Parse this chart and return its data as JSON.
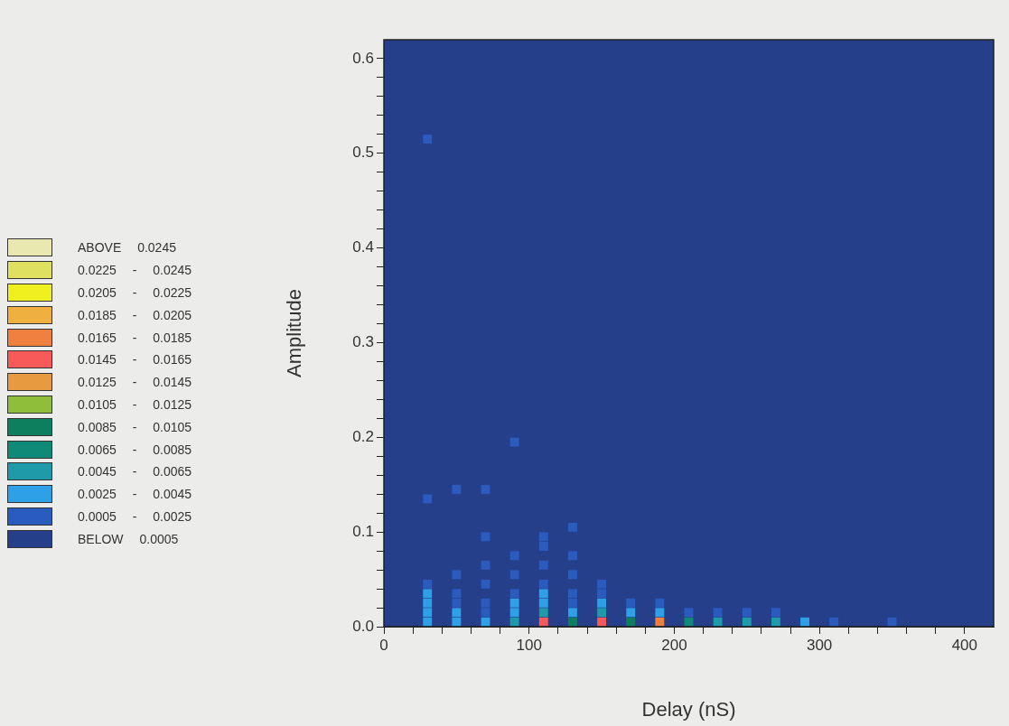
{
  "chart_data": {
    "type": "scatter",
    "xlabel": "Delay (nS)",
    "ylabel": "Amplitude",
    "marker": "square",
    "legend": "left",
    "xlim": [
      0,
      420
    ],
    "xticks": [
      0,
      {
        "value": 20,
        "label": null
      },
      {
        "value": 40,
        "label": null
      },
      {
        "value": 60,
        "label": null
      },
      {
        "value": 80,
        "label": null
      },
      100,
      {
        "value": 120,
        "label": null
      },
      {
        "value": 140,
        "label": null
      },
      {
        "value": 160,
        "label": null
      },
      {
        "value": 180,
        "label": null
      },
      200,
      {
        "value": 220,
        "label": null
      },
      {
        "value": 240,
        "label": null
      },
      {
        "value": 260,
        "label": null
      },
      {
        "value": 280,
        "label": null
      },
      300,
      {
        "value": 320,
        "label": null
      },
      {
        "value": 340,
        "label": null
      },
      {
        "value": 360,
        "label": null
      },
      {
        "value": 380,
        "label": null
      },
      400
    ],
    "ylim": [
      0,
      0.62
    ],
    "yticks": [
      {
        "value": 0,
        "label": "0.0"
      },
      {
        "value": 0.02,
        "label": null
      },
      {
        "value": 0.04,
        "label": null
      },
      {
        "value": 0.06,
        "label": null
      },
      {
        "value": 0.08,
        "label": null
      },
      0.1,
      {
        "value": 0.12,
        "label": null
      },
      {
        "value": 0.14,
        "label": null
      },
      {
        "value": 0.16,
        "label": null
      },
      {
        "value": 0.18,
        "label": null
      },
      0.2,
      {
        "value": 0.22,
        "label": null
      },
      {
        "value": 0.24,
        "label": null
      },
      {
        "value": 0.26,
        "label": null
      },
      {
        "value": 0.28,
        "label": null
      },
      0.3,
      {
        "value": 0.32,
        "label": null
      },
      {
        "value": 0.34,
        "label": null
      },
      {
        "value": 0.36,
        "label": null
      },
      {
        "value": 0.38,
        "label": null
      },
      0.4,
      {
        "value": 0.42,
        "label": null
      },
      {
        "value": 0.44,
        "label": null
      },
      {
        "value": 0.46,
        "label": null
      },
      {
        "value": 0.48,
        "label": null
      },
      0.5,
      {
        "value": 0.52,
        "label": null
      },
      {
        "value": 0.54,
        "label": null
      },
      {
        "value": 0.56,
        "label": null
      },
      {
        "value": 0.58,
        "label": null
      },
      0.6
    ],
    "series": [
      {
        "name": "ABOVE 0.0245",
        "color": "#e8e8b0"
      },
      {
        "name": "0.0225 - 0.0245",
        "color": "#e0e060"
      },
      {
        "name": "0.0205 - 0.0225",
        "color": "#f0f020"
      },
      {
        "name": "0.0185 - 0.0205",
        "color": "#f0b040"
      },
      {
        "name": "0.0165 - 0.0185",
        "color": "#f08040",
        "x": [
          190
        ],
        "values": [
          0.005
        ]
      },
      {
        "name": "0.0145 - 0.0165",
        "color": "#f85a5a",
        "x": [
          110,
          150
        ],
        "values": [
          0.005,
          0.005
        ]
      },
      {
        "name": "0.0125 - 0.0145",
        "color": "#e89a40"
      },
      {
        "name": "0.0105 - 0.0125",
        "color": "#8fbf3a"
      },
      {
        "name": "0.0085 - 0.0105",
        "color": "#0e7f5e",
        "x": [
          130,
          170
        ],
        "values": [
          0.005,
          0.005
        ]
      },
      {
        "name": "0.0065 - 0.0085",
        "color": "#0f8a78",
        "x": [
          210
        ],
        "values": [
          0.005
        ]
      },
      {
        "name": "0.0045 - 0.0065",
        "color": "#1e9aa8",
        "x": [
          110,
          150,
          90,
          230,
          250,
          270
        ],
        "values": [
          0.015,
          0.015,
          0.005,
          0.005,
          0.005,
          0.005
        ]
      },
      {
        "name": "0.0025 - 0.0045",
        "color": "#2ea0e8",
        "x": [
          30,
          110,
          30,
          90,
          110,
          150,
          30,
          50,
          90,
          130,
          170,
          190,
          30,
          50,
          70,
          290
        ],
        "values": [
          0.035,
          0.035,
          0.025,
          0.025,
          0.025,
          0.025,
          0.015,
          0.015,
          0.015,
          0.015,
          0.015,
          0.015,
          0.005,
          0.005,
          0.005,
          0.005
        ]
      },
      {
        "name": "0.0005 - 0.0025",
        "color": "#2a5cc0",
        "x": [
          30,
          90,
          50,
          70,
          30,
          130,
          70,
          110,
          110,
          90,
          130,
          70,
          110,
          50,
          90,
          130,
          30,
          70,
          110,
          150,
          50,
          90,
          130,
          150,
          50,
          70,
          130,
          170,
          190,
          70,
          210,
          230,
          250,
          270,
          310,
          350
        ],
        "values": [
          0.515,
          0.195,
          0.145,
          0.145,
          0.135,
          0.105,
          0.095,
          0.095,
          0.085,
          0.075,
          0.075,
          0.065,
          0.065,
          0.055,
          0.055,
          0.055,
          0.045,
          0.045,
          0.045,
          0.045,
          0.035,
          0.035,
          0.035,
          0.035,
          0.025,
          0.025,
          0.025,
          0.025,
          0.025,
          0.015,
          0.015,
          0.015,
          0.015,
          0.015,
          0.005,
          0.005
        ]
      },
      {
        "name": "BELOW 0.0005",
        "color": "#263f8a"
      }
    ]
  }
}
